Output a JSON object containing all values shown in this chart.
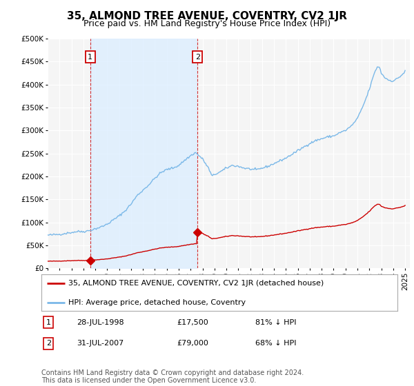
{
  "title": "35, ALMOND TREE AVENUE, COVENTRY, CV2 1JR",
  "subtitle": "Price paid vs. HM Land Registry's House Price Index (HPI)",
  "ylim": [
    0,
    500000
  ],
  "ytick_labels": [
    "£0",
    "£50K",
    "£100K",
    "£150K",
    "£200K",
    "£250K",
    "£300K",
    "£350K",
    "£400K",
    "£450K",
    "£500K"
  ],
  "sale1_year": 1998.58,
  "sale1_price": 17500,
  "sale2_year": 2007.58,
  "sale2_price": 79000,
  "sale1_date": "28-JUL-1998",
  "sale1_amount": "£17,500",
  "sale1_hpi": "81% ↓ HPI",
  "sale2_date": "31-JUL-2007",
  "sale2_amount": "£79,000",
  "sale2_hpi": "68% ↓ HPI",
  "legend_property": "35, ALMOND TREE AVENUE, COVENTRY, CV2 1JR (detached house)",
  "legend_hpi": "HPI: Average price, detached house, Coventry",
  "footer": "Contains HM Land Registry data © Crown copyright and database right 2024.\nThis data is licensed under the Open Government Licence v3.0.",
  "hpi_color": "#7ab8e8",
  "property_color": "#cc0000",
  "fill_color": "#ddeeff",
  "background_color": "#ffffff",
  "plot_bg_color": "#f5f5f5",
  "grid_color": "#ffffff",
  "title_fontsize": 11,
  "subtitle_fontsize": 9,
  "tick_fontsize": 7.5,
  "legend_fontsize": 8,
  "footer_fontsize": 7
}
